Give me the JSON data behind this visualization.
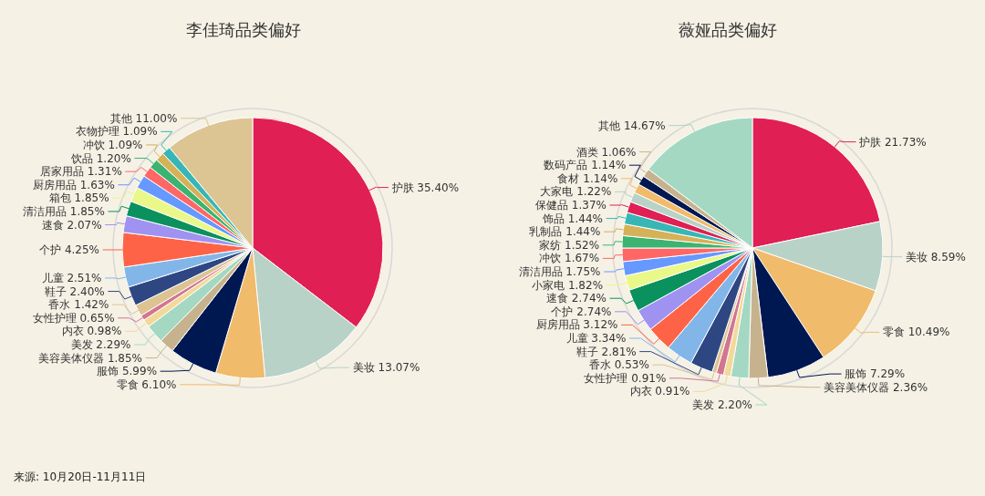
{
  "chart_data": [
    {
      "type": "pie",
      "title": "李佳琦品类偏好",
      "categories": [
        "护肤",
        "美妆",
        "零食",
        "服饰",
        "美容美体仪器",
        "美发",
        "内衣",
        "女性护理",
        "香水",
        "鞋子",
        "儿童",
        "个护",
        "速食",
        "清洁用品",
        "箱包",
        "厨房用品",
        "居家用品",
        "饮品",
        "冲饮",
        "衣物护理",
        "其他"
      ],
      "values": [
        35.4,
        13.07,
        6.1,
        5.99,
        1.85,
        2.29,
        0.98,
        0.65,
        1.42,
        2.4,
        2.51,
        4.25,
        2.07,
        1.85,
        1.85,
        1.63,
        1.31,
        1.2,
        1.09,
        1.09,
        11.0
      ],
      "value_labels": [
        "35.40%",
        "13.07%",
        "6.10%",
        "5.99%",
        "1.85%",
        "2.29%",
        "0.98%",
        "0.65%",
        "1.42%",
        "2.40%",
        "2.51%",
        "4.25%",
        "2.07%",
        "1.85%",
        "1.85%",
        "1.63%",
        "1.31%",
        "1.20%",
        "1.09%",
        "1.09%",
        "11.00%"
      ],
      "colors": [
        "#e01f54",
        "#b8d2c7",
        "#f0bb6b",
        "#001852",
        "#c6b38e",
        "#a4d8c2",
        "#f3d999",
        "#d3758f",
        "#dcc392",
        "#2e4783",
        "#82b6e9",
        "#ff6347",
        "#a092f1",
        "#0a915d",
        "#eaf889",
        "#6699ff",
        "#ff6666",
        "#3cb371",
        "#d5b158",
        "#38b6b6",
        "#ddc593"
      ],
      "annotations": [
        "来源: 10月20日-11月11日"
      ]
    },
    {
      "type": "pie",
      "title": "薇娅品类偏好",
      "categories": [
        "护肤",
        "美妆",
        "零食",
        "服饰",
        "美容美体仪器",
        "美发",
        "内衣",
        "女性护理",
        "香水",
        "鞋子",
        "儿童",
        "厨房用品",
        "个护",
        "速食",
        "小家电",
        "清洁用品",
        "冲饮",
        "家纺",
        "乳制品",
        "饰品",
        "保健品",
        "大家电",
        "食材",
        "数码产品",
        "酒类",
        "其他"
      ],
      "values": [
        21.73,
        8.59,
        10.49,
        7.29,
        2.36,
        2.2,
        0.91,
        0.91,
        0.53,
        2.81,
        3.34,
        3.12,
        2.74,
        2.74,
        1.82,
        1.75,
        1.67,
        1.52,
        1.44,
        1.44,
        1.37,
        1.22,
        1.14,
        1.14,
        1.06,
        14.67
      ],
      "value_labels": [
        "21.73%",
        "8.59%",
        "10.49%",
        "7.29%",
        "2.36%",
        "2.20%",
        "0.91%",
        "0.91%",
        "0.53%",
        "2.81%",
        "3.34%",
        "3.12%",
        "2.74%",
        "2.74%",
        "1.82%",
        "1.75%",
        "1.67%",
        "1.52%",
        "1.44%",
        "1.44%",
        "1.37%",
        "1.22%",
        "1.14%",
        "1.14%",
        "1.06%",
        "14.67%"
      ],
      "colors": [
        "#e01f54",
        "#b8d2c7",
        "#f0bb6b",
        "#001852",
        "#c6b38e",
        "#a4d8c2",
        "#f3d999",
        "#d3758f",
        "#dcc392",
        "#2e4783",
        "#82b6e9",
        "#ff6347",
        "#a092f1",
        "#0a915d",
        "#eaf889",
        "#6699ff",
        "#ff6666",
        "#3cb371",
        "#d5b158",
        "#38b6b6",
        "#e01f54",
        "#b8d2c7",
        "#f0bb6b",
        "#001852",
        "#c6b38e",
        "#a4d8c2"
      ]
    }
  ]
}
